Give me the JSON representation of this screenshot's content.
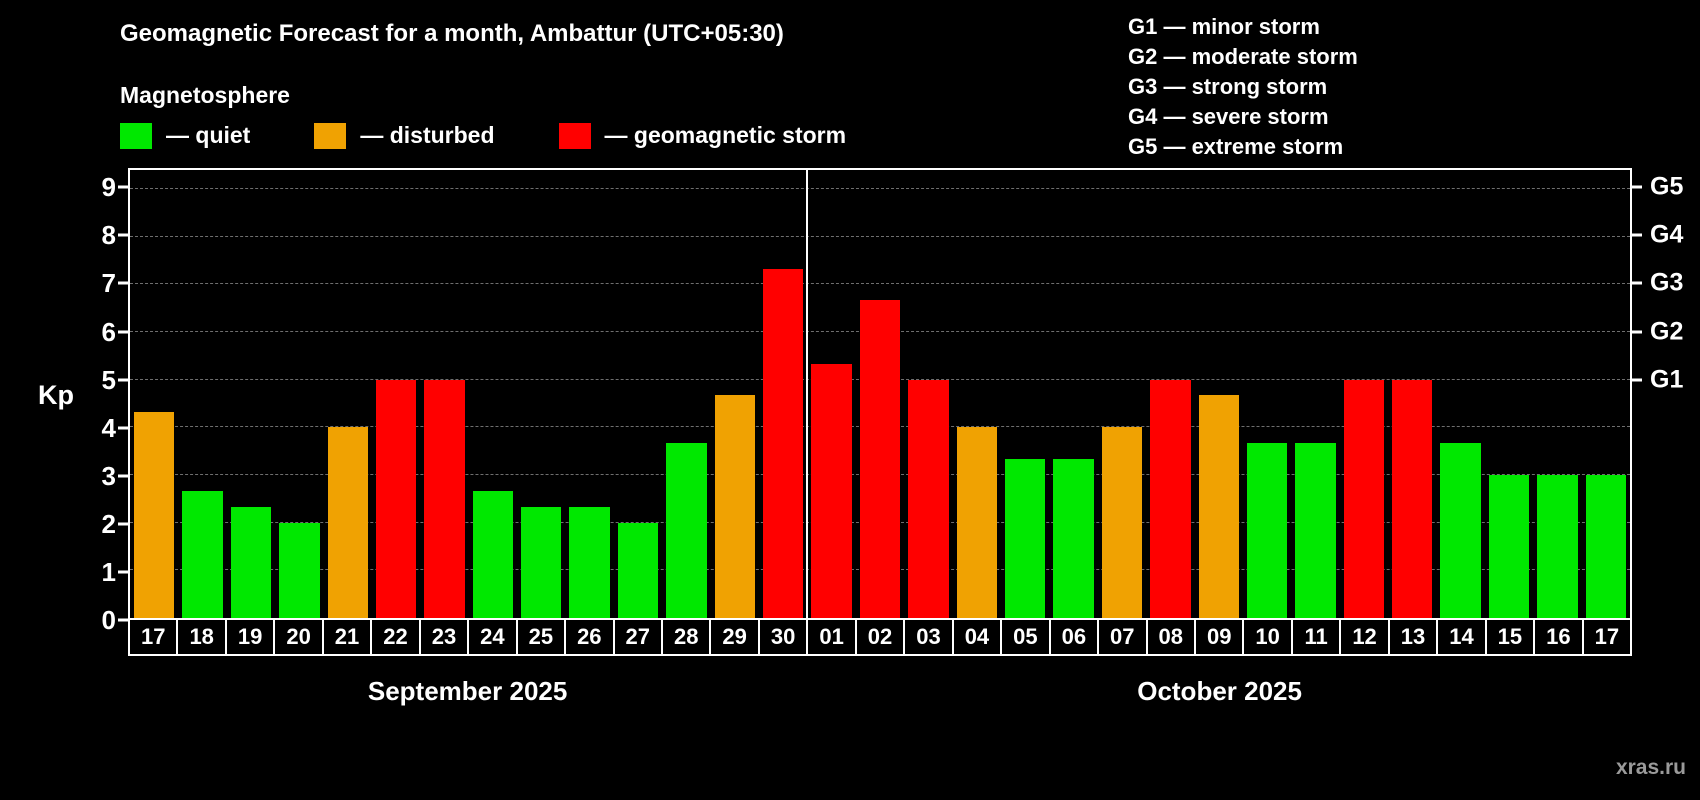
{
  "header": {
    "title": "Geomagnetic Forecast for a month, Ambattur (UTC+05:30)",
    "subtitle": "Magnetosphere"
  },
  "kp_legend": [
    {
      "key": "quiet",
      "label": "— quiet"
    },
    {
      "key": "disturbed",
      "label": "— disturbed"
    },
    {
      "key": "storm",
      "label": "— geomagnetic storm"
    }
  ],
  "g_legend": [
    "G1 — minor storm",
    "G2 — moderate storm",
    "G3 — strong storm",
    "G4 — severe storm",
    "G5 — extreme storm"
  ],
  "colors": {
    "quiet": "#00e800",
    "disturbed": "#f0a202",
    "storm": "#ff0000",
    "grid": "#6f6f6f",
    "axis": "#ffffff",
    "background": "#000000",
    "watermark": "#9a9a9a"
  },
  "watermark": "xras.ru",
  "chart_data": {
    "type": "bar",
    "title": "Geomagnetic Forecast for a month, Ambattur (UTC+05:30)",
    "ylabel": "Kp",
    "ylim": [
      0,
      9.4
    ],
    "yticks": [
      0,
      1,
      2,
      3,
      4,
      5,
      6,
      7,
      8,
      9
    ],
    "grid": "dashed-horizontal",
    "right_axis": [
      {
        "label": "G1",
        "value": 5
      },
      {
        "label": "G2",
        "value": 6
      },
      {
        "label": "G3",
        "value": 7
      },
      {
        "label": "G4",
        "value": 8
      },
      {
        "label": "G5",
        "value": 9
      }
    ],
    "months": [
      {
        "label": "September 2025",
        "days": 14
      },
      {
        "label": "October 2025",
        "days": 17
      }
    ],
    "bars": [
      {
        "day": "17",
        "value": 4.33,
        "status": "disturbed"
      },
      {
        "day": "18",
        "value": 2.67,
        "status": "quiet"
      },
      {
        "day": "19",
        "value": 2.33,
        "status": "quiet"
      },
      {
        "day": "20",
        "value": 2.0,
        "status": "quiet"
      },
      {
        "day": "21",
        "value": 4.0,
        "status": "disturbed"
      },
      {
        "day": "22",
        "value": 5.0,
        "status": "storm"
      },
      {
        "day": "23",
        "value": 5.0,
        "status": "storm"
      },
      {
        "day": "24",
        "value": 2.67,
        "status": "quiet"
      },
      {
        "day": "25",
        "value": 2.33,
        "status": "quiet"
      },
      {
        "day": "26",
        "value": 2.33,
        "status": "quiet"
      },
      {
        "day": "27",
        "value": 2.0,
        "status": "quiet"
      },
      {
        "day": "28",
        "value": 3.67,
        "status": "quiet"
      },
      {
        "day": "29",
        "value": 4.67,
        "status": "disturbed"
      },
      {
        "day": "30",
        "value": 7.33,
        "status": "storm"
      },
      {
        "day": "01",
        "value": 5.33,
        "status": "storm"
      },
      {
        "day": "02",
        "value": 6.67,
        "status": "storm"
      },
      {
        "day": "03",
        "value": 5.0,
        "status": "storm"
      },
      {
        "day": "04",
        "value": 4.0,
        "status": "disturbed"
      },
      {
        "day": "05",
        "value": 3.33,
        "status": "quiet"
      },
      {
        "day": "06",
        "value": 3.33,
        "status": "quiet"
      },
      {
        "day": "07",
        "value": 4.0,
        "status": "disturbed"
      },
      {
        "day": "08",
        "value": 5.0,
        "status": "storm"
      },
      {
        "day": "09",
        "value": 4.67,
        "status": "disturbed"
      },
      {
        "day": "10",
        "value": 3.67,
        "status": "quiet"
      },
      {
        "day": "11",
        "value": 3.67,
        "status": "quiet"
      },
      {
        "day": "12",
        "value": 5.0,
        "status": "storm"
      },
      {
        "day": "13",
        "value": 5.0,
        "status": "storm"
      },
      {
        "day": "14",
        "value": 3.67,
        "status": "quiet"
      },
      {
        "day": "15",
        "value": 3.0,
        "status": "quiet"
      },
      {
        "day": "16",
        "value": 3.0,
        "status": "quiet"
      },
      {
        "day": "17",
        "value": 3.0,
        "status": "quiet"
      }
    ]
  }
}
